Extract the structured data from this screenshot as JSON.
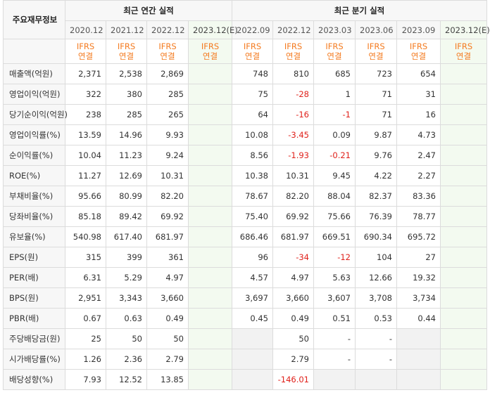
{
  "header": {
    "row_label": "주요재무정보",
    "annual_title": "최근 연간 실적",
    "quarter_title": "최근 분기 실적",
    "periods": [
      "2020.12",
      "2021.12",
      "2022.12",
      "2023.12(E)",
      "2022.09",
      "2022.12",
      "2023.03",
      "2023.06",
      "2023.09",
      "2023.12(E)"
    ],
    "ifrs_line1": "IFRS",
    "ifrs_line2": "연결"
  },
  "rows": [
    {
      "label": "매출액(억원)",
      "values": [
        "2,371",
        "2,538",
        "2,869",
        "",
        "748",
        "810",
        "685",
        "723",
        "654",
        ""
      ]
    },
    {
      "label": "영업이익(억원)",
      "values": [
        "322",
        "380",
        "285",
        "",
        "75",
        "-28",
        "1",
        "71",
        "31",
        ""
      ]
    },
    {
      "label": "당기순이익(억원)",
      "values": [
        "238",
        "285",
        "265",
        "",
        "64",
        "-16",
        "-1",
        "71",
        "16",
        ""
      ]
    },
    {
      "label": "영업이익률(%)",
      "values": [
        "13.59",
        "14.96",
        "9.93",
        "",
        "10.08",
        "-3.45",
        "0.09",
        "9.87",
        "4.73",
        ""
      ]
    },
    {
      "label": "순이익률(%)",
      "values": [
        "10.04",
        "11.23",
        "9.24",
        "",
        "8.56",
        "-1.93",
        "-0.21",
        "9.76",
        "2.47",
        ""
      ]
    },
    {
      "label": "ROE(%)",
      "values": [
        "11.27",
        "12.69",
        "10.31",
        "",
        "10.38",
        "10.31",
        "9.45",
        "4.22",
        "2.27",
        ""
      ]
    },
    {
      "label": "부채비율(%)",
      "values": [
        "95.66",
        "80.99",
        "82.20",
        "",
        "78.67",
        "82.20",
        "88.04",
        "82.37",
        "83.36",
        ""
      ]
    },
    {
      "label": "당좌비율(%)",
      "values": [
        "85.18",
        "89.42",
        "69.92",
        "",
        "75.40",
        "69.92",
        "75.66",
        "76.39",
        "78.77",
        ""
      ]
    },
    {
      "label": "유보율(%)",
      "values": [
        "540.98",
        "617.40",
        "681.97",
        "",
        "686.46",
        "681.97",
        "669.51",
        "690.34",
        "695.72",
        ""
      ]
    },
    {
      "label": "EPS(원)",
      "values": [
        "315",
        "399",
        "361",
        "",
        "96",
        "-34",
        "-12",
        "104",
        "27",
        ""
      ]
    },
    {
      "label": "PER(배)",
      "values": [
        "6.31",
        "5.29",
        "4.97",
        "",
        "4.57",
        "4.97",
        "5.63",
        "12.66",
        "19.32",
        ""
      ]
    },
    {
      "label": "BPS(원)",
      "values": [
        "2,951",
        "3,343",
        "3,660",
        "",
        "3,697",
        "3,660",
        "3,607",
        "3,708",
        "3,734",
        ""
      ]
    },
    {
      "label": "PBR(배)",
      "values": [
        "0.67",
        "0.63",
        "0.49",
        "",
        "0.45",
        "0.49",
        "0.51",
        "0.53",
        "0.44",
        ""
      ]
    },
    {
      "label": "주당배당금(원)",
      "values": [
        "25",
        "50",
        "50",
        "",
        "",
        "50",
        "-",
        "-",
        "",
        ""
      ]
    },
    {
      "label": "시가배당률(%)",
      "values": [
        "1.26",
        "2.36",
        "2.79",
        "",
        "",
        "2.79",
        "-",
        "-",
        "",
        ""
      ]
    },
    {
      "label": "배당성향(%)",
      "values": [
        "7.93",
        "12.52",
        "13.85",
        "",
        "",
        "-146.01",
        "",
        "",
        "",
        ""
      ]
    }
  ]
}
